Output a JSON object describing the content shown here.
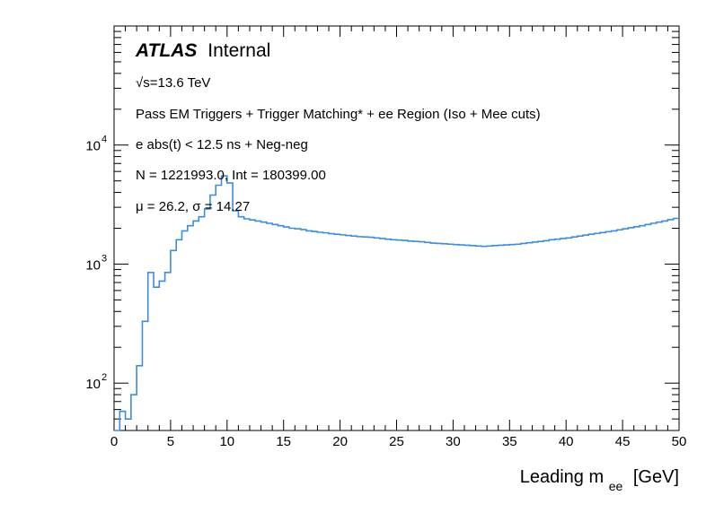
{
  "chart_data": {
    "type": "line",
    "title": "",
    "xlabel": "Leading m",
    "xlabel_sub": "ee",
    "xlabel_unit": "[GeV]",
    "ylabel": "",
    "xlim": [
      0,
      50
    ],
    "ylim": [
      40,
      100000
    ],
    "yscale": "log",
    "grid": false,
    "x_ticks": [
      "0",
      "5",
      "10",
      "15",
      "20",
      "25",
      "30",
      "35",
      "40",
      "45",
      "50"
    ],
    "y_ticks": [
      {
        "base": "10",
        "exp": "2",
        "value": 100
      },
      {
        "base": "10",
        "exp": "3",
        "value": 1000
      },
      {
        "base": "10",
        "exp": "4",
        "value": 10000
      }
    ],
    "bin_width": 0.5,
    "series": [
      {
        "color": "#3d8ddc",
        "x_start": 0,
        "values": [
          40,
          58,
          50,
          80,
          140,
          330,
          850,
          640,
          720,
          850,
          1300,
          1600,
          1900,
          2100,
          2300,
          2500,
          2900,
          3800,
          4600,
          5500,
          4800,
          2800,
          2500,
          2400,
          2350,
          2300,
          2250,
          2200,
          2150,
          2100,
          2050,
          2000,
          1980,
          1950,
          1900,
          1880,
          1850,
          1830,
          1800,
          1780,
          1760,
          1740,
          1720,
          1700,
          1690,
          1680,
          1660,
          1640,
          1620,
          1600,
          1590,
          1580,
          1560,
          1550,
          1540,
          1520,
          1500,
          1490,
          1480,
          1470,
          1460,
          1450,
          1440,
          1430,
          1420,
          1410,
          1420,
          1430,
          1440,
          1450,
          1460,
          1470,
          1490,
          1510,
          1530,
          1550,
          1570,
          1600,
          1620,
          1640,
          1660,
          1690,
          1720,
          1750,
          1780,
          1810,
          1840,
          1870,
          1900,
          1940,
          1980,
          2020,
          2060,
          2100,
          2150,
          2200,
          2250,
          2300,
          2360,
          2420
        ]
      }
    ],
    "annotations": {
      "atlas_bold": "ATLAS",
      "atlas_label": "Internal",
      "energy": "√s=13.6 TeV",
      "selection": "Pass EM Triggers + Trigger Matching* + ee Region (Iso + Mee cuts)",
      "timing": "e abs(t) < 12.5 ns + Neg-neg",
      "counts": "N = 1221993.0, Int  = 180399.00",
      "stats": "μ = 26.2, σ = 14.27"
    }
  }
}
